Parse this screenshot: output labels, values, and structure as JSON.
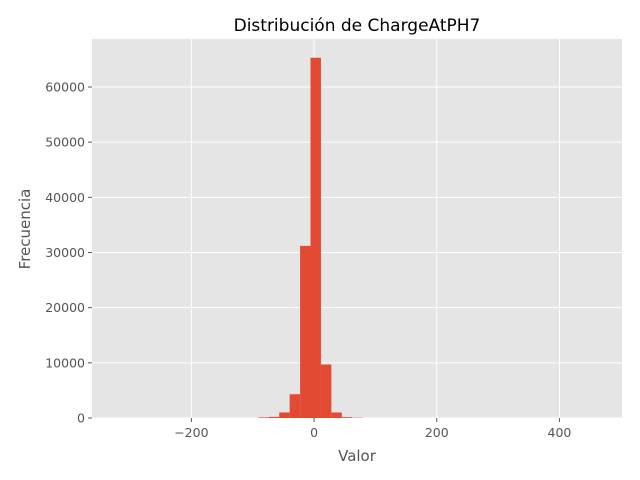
{
  "chart_data": {
    "type": "bar",
    "title": "Distribución de ChargeAtPH7",
    "xlabel": "Valor",
    "ylabel": "Frecuencia",
    "xlim": [
      -362,
      502
    ],
    "ylim": [
      0,
      68700
    ],
    "xticks": [
      -200,
      0,
      200,
      400
    ],
    "xtick_labels": [
      "−200",
      "0",
      "200",
      "400"
    ],
    "yticks": [
      0,
      10000,
      20000,
      30000,
      40000,
      50000,
      60000
    ],
    "ytick_labels": [
      "0",
      "10000",
      "20000",
      "30000",
      "40000",
      "50000",
      "60000"
    ],
    "grid": true,
    "bins": [
      {
        "x0": -141.8,
        "x1": -124.8,
        "value": 0
      },
      {
        "x0": -124.8,
        "x1": -107.8,
        "value": 0
      },
      {
        "x0": -107.8,
        "x1": -90.8,
        "value": 0
      },
      {
        "x0": -90.8,
        "x1": -73.8,
        "value": 100
      },
      {
        "x0": -73.8,
        "x1": -56.8,
        "value": 200
      },
      {
        "x0": -56.8,
        "x1": -39.8,
        "value": 1000
      },
      {
        "x0": -39.8,
        "x1": -22.8,
        "value": 4300
      },
      {
        "x0": -22.8,
        "x1": -5.8,
        "value": 31200
      },
      {
        "x0": -5.8,
        "x1": 11.2,
        "value": 65300
      },
      {
        "x0": 11.2,
        "x1": 28.2,
        "value": 9700
      },
      {
        "x0": 28.2,
        "x1": 45.2,
        "value": 1000
      },
      {
        "x0": 45.2,
        "x1": 62.2,
        "value": 150
      },
      {
        "x0": 62.2,
        "x1": 79.2,
        "value": 50
      },
      {
        "x0": 79.2,
        "x1": 96.2,
        "value": 0
      },
      {
        "x0": 96.2,
        "x1": 113.2,
        "value": 0
      },
      {
        "x0": 113.2,
        "x1": 130.2,
        "value": 0
      },
      {
        "x0": 130.2,
        "x1": 147.2,
        "value": 0
      },
      {
        "x0": 147.2,
        "x1": 164.2,
        "value": 0
      },
      {
        "x0": 164.2,
        "x1": 181.2,
        "value": 0
      },
      {
        "x0": 181.2,
        "x1": 198.2,
        "value": 0
      },
      {
        "x0": 198.2,
        "x1": 215.2,
        "value": 0
      },
      {
        "x0": 215.2,
        "x1": 232.2,
        "value": 0
      },
      {
        "x0": 232.2,
        "x1": 249.2,
        "value": 0
      },
      {
        "x0": 249.2,
        "x1": 266.2,
        "value": 0
      },
      {
        "x0": 266.2,
        "x1": 283.2,
        "value": 0
      },
      {
        "x0": 283.2,
        "x1": 300.2,
        "value": 0
      },
      {
        "x0": 300.2,
        "x1": 317.2,
        "value": 0
      },
      {
        "x0": 317.2,
        "x1": 334.2,
        "value": 0
      },
      {
        "x0": 334.2,
        "x1": 351.2,
        "value": 0
      },
      {
        "x0": 351.2,
        "x1": 368.2,
        "value": 0
      },
      {
        "x0": 368.2,
        "x1": 385.2,
        "value": 0
      },
      {
        "x0": 385.2,
        "x1": 402.2,
        "value": 0
      },
      {
        "x0": 402.2,
        "x1": 419.2,
        "value": 0
      },
      {
        "x0": 419.2,
        "x1": 436.2,
        "value": 0
      },
      {
        "x0": 436.2,
        "x1": 453.2,
        "value": 0
      },
      {
        "x0": 453.2,
        "x1": 470.2,
        "value": 0
      },
      {
        "x0": 470.2,
        "x1": 487.2,
        "value": 0
      }
    ],
    "colors": {
      "bar": "#E24A33",
      "plot_background": "#E5E5E5",
      "grid": "#FFFFFF"
    }
  }
}
